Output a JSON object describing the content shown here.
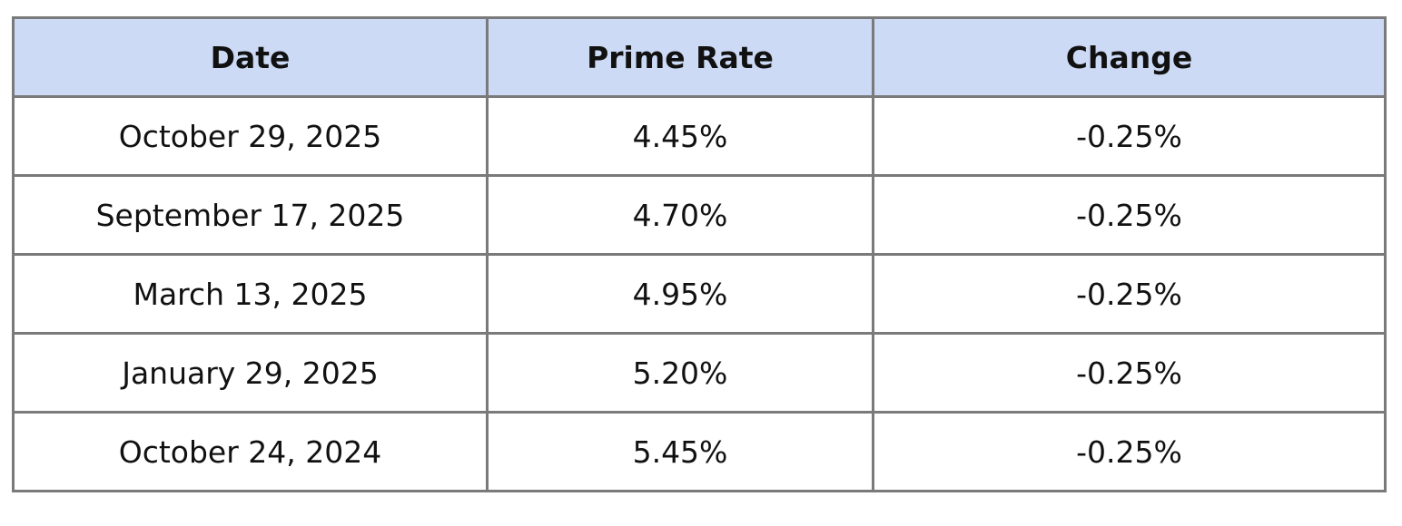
{
  "table": {
    "header": [
      "Date",
      "Prime Rate",
      "Change"
    ],
    "rows": [
      [
        "October 29, 2025",
        "4.45%",
        "-0.25%"
      ],
      [
        "September 17, 2025",
        "4.70%",
        "-0.25%"
      ],
      [
        "March 13, 2025",
        "4.95%",
        "-0.25%"
      ],
      [
        "January 29, 2025",
        "5.20%",
        "-0.25%"
      ],
      [
        "October 24, 2024",
        "5.45%",
        "-0.25%"
      ]
    ]
  }
}
